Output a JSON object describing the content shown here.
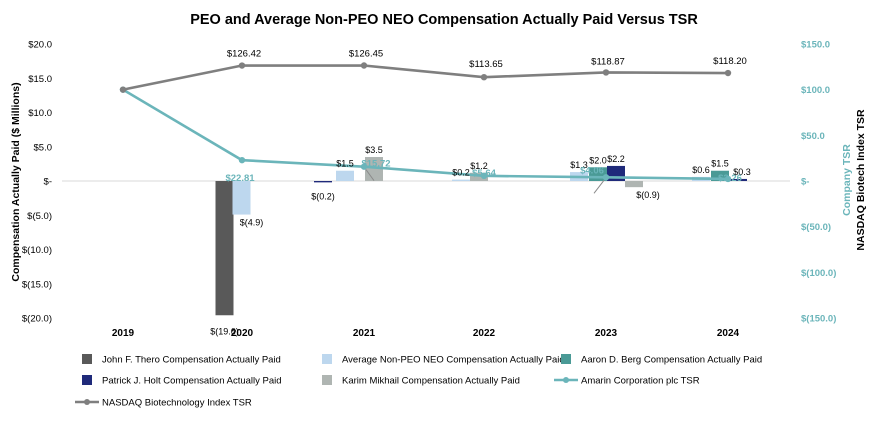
{
  "chart_data": {
    "type": "bar",
    "title": "PEO and Average Non-PEO NEO Compensation Actually Paid Versus TSR",
    "ylabel_left": "Compensation Actually Paid ($ Millions)",
    "ylabel_right_1": "Company TSR",
    "ylabel_right_2": "NASDAQ Biotech Index TSR",
    "categories": [
      "2019",
      "2020",
      "2021",
      "2022",
      "2023",
      "2024"
    ],
    "left_axis": {
      "ylim": [
        -20,
        20
      ],
      "ticks": [
        20,
        15,
        10,
        5,
        0,
        -5,
        -10,
        -15,
        -20
      ],
      "tick_labels": [
        "$20.0",
        "$15.0",
        "$10.0",
        "$5.0",
        "$-",
        "$(5.0)",
        "$(10.0)",
        "$(15.0)",
        "$(20.0)"
      ]
    },
    "right_axis": {
      "ylim": [
        -150,
        150
      ],
      "ticks": [
        150,
        100,
        50,
        0,
        -50,
        -100,
        -150
      ],
      "tick_labels": [
        "$150.0",
        "$100.0",
        "$50.0",
        "$-",
        "$(50.0)",
        "$(100.0)",
        "$(150.0)"
      ]
    },
    "bar_series": [
      {
        "name": "John F. Thero Compensation Actually Paid",
        "color": "#595959",
        "values": [
          null,
          -19.6,
          null,
          null,
          null,
          null
        ],
        "labels": [
          null,
          "$(19.6)",
          null,
          null,
          null,
          null
        ]
      },
      {
        "name": "Average Non-PEO NEO Compensation Actually Paid",
        "color": "#BDD7EE",
        "values": [
          null,
          -4.9,
          1.5,
          0.2,
          1.3,
          0.6
        ],
        "labels": [
          null,
          "$(4.9)",
          "$1.5",
          "$0.2",
          "$1.3",
          "$0.6"
        ]
      },
      {
        "name": "Aaron D. Berg Compensation Actually Paid",
        "color": "#4A9A96",
        "values": [
          null,
          null,
          null,
          null,
          2.0,
          1.5
        ],
        "labels": [
          null,
          null,
          null,
          null,
          "$2.0",
          "$1.5"
        ]
      },
      {
        "name": "Patrick J. Holt Compensation Actually Paid",
        "color": "#1F2A7A",
        "values": [
          null,
          null,
          -0.2,
          null,
          2.2,
          0.3
        ],
        "labels": [
          null,
          null,
          "$(0.2)",
          null,
          "$2.2",
          "$0.3"
        ]
      },
      {
        "name": "Karim Mikhail Compensation Actually Paid",
        "color": "#AFB5B2",
        "values": [
          null,
          null,
          3.5,
          1.2,
          -0.9,
          null
        ],
        "labels": [
          null,
          null,
          "$3.5",
          "$1.2",
          "$(0.9)",
          null
        ]
      }
    ],
    "line_series": [
      {
        "name": "Amarin Corporation plc TSR",
        "color": "#6BB5BA",
        "values": [
          100,
          22.81,
          15.72,
          5.64,
          4.06,
          2.26
        ],
        "labels": [
          null,
          "$22.81",
          "$15.72",
          "$5.64",
          "$4.06",
          "$2.26"
        ]
      },
      {
        "name": "NASDAQ Biotechnology Index TSR",
        "color": "#7F7F7F",
        "values": [
          100,
          126.42,
          126.45,
          113.65,
          118.87,
          118.2
        ],
        "labels": [
          null,
          "$126.42",
          "$126.45",
          "$113.65",
          "$118.87",
          "$118.20"
        ]
      }
    ],
    "legend": [
      "John F. Thero Compensation Actually Paid",
      "Average Non-PEO NEO Compensation Actually Paid",
      "Aaron D. Berg Compensation Actually Paid",
      "Patrick J. Holt Compensation Actually Paid",
      "Karim Mikhail Compensation Actually Paid",
      "Amarin Corporation plc TSR",
      "NASDAQ Biotechnology Index TSR"
    ],
    "legend_position": "bottom"
  }
}
